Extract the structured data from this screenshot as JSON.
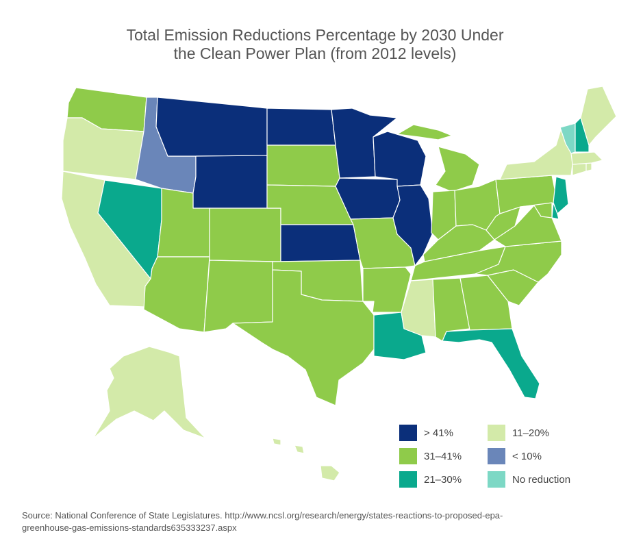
{
  "title": {
    "line1": "Total Emission Reductions Percentage by 2030 Under",
    "line2": "the Clean Power Plan (from 2012 levels)"
  },
  "colors": {
    "gt41": "#0b2f7a",
    "c31_41": "#8fcb4a",
    "c21_30": "#0aa98d",
    "c11_20": "#d3eaa9",
    "lt10": "#6a86b9",
    "none": "#7dd8c5"
  },
  "legend": [
    {
      "key": "gt41",
      "label": "> 41%"
    },
    {
      "key": "c11_20",
      "label": "11–20%"
    },
    {
      "key": "c31_41",
      "label": "31–41%"
    },
    {
      "key": "lt10",
      "label": "< 10%"
    },
    {
      "key": "c21_30",
      "label": "21–30%"
    },
    {
      "key": "none",
      "label": "No reduction"
    }
  ],
  "states": [
    {
      "name": "Washington",
      "category": "c31_41"
    },
    {
      "name": "Oregon",
      "category": "c11_20"
    },
    {
      "name": "California",
      "category": "c11_20"
    },
    {
      "name": "Nevada",
      "category": "c21_30"
    },
    {
      "name": "Idaho",
      "category": "lt10"
    },
    {
      "name": "Montana",
      "category": "gt41"
    },
    {
      "name": "Wyoming",
      "category": "gt41"
    },
    {
      "name": "Utah",
      "category": "c31_41"
    },
    {
      "name": "Colorado",
      "category": "c31_41"
    },
    {
      "name": "Arizona",
      "category": "c31_41"
    },
    {
      "name": "New Mexico",
      "category": "c31_41"
    },
    {
      "name": "North Dakota",
      "category": "gt41"
    },
    {
      "name": "South Dakota",
      "category": "c31_41"
    },
    {
      "name": "Nebraska",
      "category": "c31_41"
    },
    {
      "name": "Kansas",
      "category": "gt41"
    },
    {
      "name": "Oklahoma",
      "category": "c31_41"
    },
    {
      "name": "Texas",
      "category": "c31_41"
    },
    {
      "name": "Minnesota",
      "category": "gt41"
    },
    {
      "name": "Iowa",
      "category": "gt41"
    },
    {
      "name": "Missouri",
      "category": "c31_41"
    },
    {
      "name": "Arkansas",
      "category": "c31_41"
    },
    {
      "name": "Louisiana",
      "category": "c21_30"
    },
    {
      "name": "Wisconsin",
      "category": "gt41"
    },
    {
      "name": "Illinois",
      "category": "gt41"
    },
    {
      "name": "Michigan",
      "category": "c31_41"
    },
    {
      "name": "Indiana",
      "category": "c31_41"
    },
    {
      "name": "Ohio",
      "category": "c31_41"
    },
    {
      "name": "Kentucky",
      "category": "c31_41"
    },
    {
      "name": "Tennessee",
      "category": "c31_41"
    },
    {
      "name": "Mississippi",
      "category": "c11_20"
    },
    {
      "name": "Alabama",
      "category": "c31_41"
    },
    {
      "name": "Georgia",
      "category": "c31_41"
    },
    {
      "name": "Florida",
      "category": "c21_30"
    },
    {
      "name": "South Carolina",
      "category": "c31_41"
    },
    {
      "name": "North Carolina",
      "category": "c31_41"
    },
    {
      "name": "Virginia",
      "category": "c31_41"
    },
    {
      "name": "West Virginia",
      "category": "c31_41"
    },
    {
      "name": "Pennsylvania",
      "category": "c31_41"
    },
    {
      "name": "New York",
      "category": "c11_20"
    },
    {
      "name": "New Jersey",
      "category": "c21_30"
    },
    {
      "name": "Delaware",
      "category": "c21_30"
    },
    {
      "name": "Maryland",
      "category": "c31_41"
    },
    {
      "name": "Connecticut",
      "category": "c11_20"
    },
    {
      "name": "Rhode Island",
      "category": "c11_20"
    },
    {
      "name": "Massachusetts",
      "category": "c11_20"
    },
    {
      "name": "Vermont",
      "category": "none"
    },
    {
      "name": "New Hampshire",
      "category": "c21_30"
    },
    {
      "name": "Maine",
      "category": "c11_20"
    },
    {
      "name": "Alaska",
      "category": "c11_20"
    },
    {
      "name": "Hawaii",
      "category": "c11_20"
    }
  ],
  "source": {
    "line1": "Source: National Conference of State Legislatures. http://www.ncsl.org/research/energy/states-reactions-to-proposed-epa-",
    "line2": "greenhouse-gas-emissions-standards635333237.aspx"
  }
}
